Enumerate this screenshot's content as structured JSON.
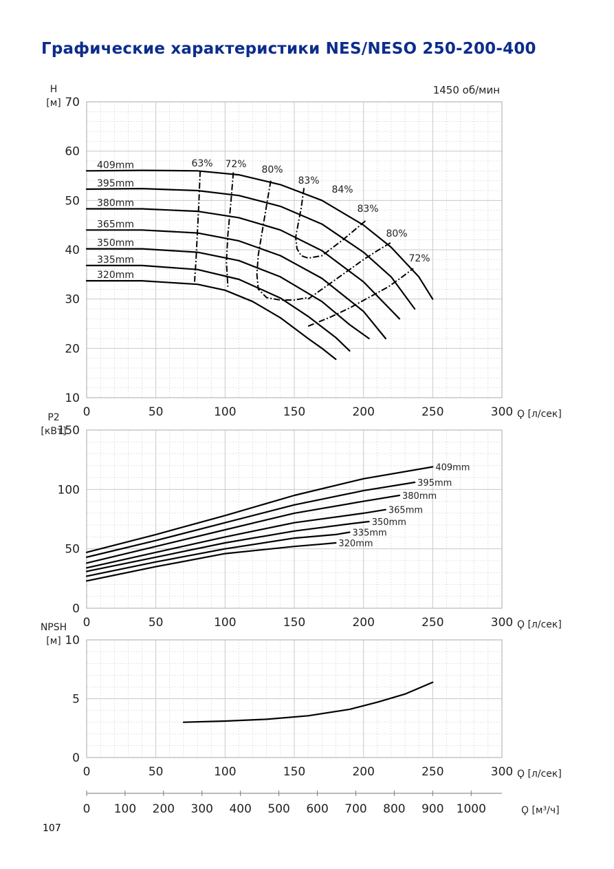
{
  "page": {
    "title": "Графические характеристики NES/NESO 250-200-400",
    "page_number": "107",
    "speed_label": "1450 об/мин",
    "colors": {
      "title": "#0d2d8c",
      "curves": "#000000",
      "grid": "#c8c8c8",
      "axis_text": "#222222"
    }
  },
  "chart_data": [
    {
      "type": "line",
      "id": "head",
      "title": "",
      "ylabel": "H\n[м]",
      "xlabel": "Q [л/сек]",
      "xlim": [
        0,
        300
      ],
      "ylim": [
        10,
        70
      ],
      "xticks": [
        "0",
        "50",
        "100",
        "150",
        "200",
        "250",
        "300"
      ],
      "yticks": [
        "10",
        "20",
        "30",
        "40",
        "50",
        "60",
        "70"
      ],
      "grid": true,
      "series": [
        {
          "name": "409mm",
          "x": [
            0,
            40,
            80,
            110,
            140,
            170,
            200,
            220,
            240,
            250
          ],
          "y": [
            56.0,
            56.1,
            56.0,
            55.2,
            53.2,
            50.0,
            45.0,
            40.5,
            34.5,
            30.0
          ]
        },
        {
          "name": "395mm",
          "x": [
            0,
            40,
            80,
            110,
            140,
            170,
            200,
            220,
            237
          ],
          "y": [
            52.3,
            52.4,
            52.0,
            51.0,
            48.8,
            45.2,
            39.5,
            34.5,
            28.0
          ]
        },
        {
          "name": "380mm",
          "x": [
            0,
            40,
            80,
            110,
            140,
            170,
            200,
            226
          ],
          "y": [
            48.3,
            48.3,
            47.8,
            46.5,
            44.0,
            39.8,
            33.5,
            26.0
          ]
        },
        {
          "name": "365mm",
          "x": [
            0,
            40,
            80,
            110,
            140,
            170,
            200,
            216
          ],
          "y": [
            44.0,
            44.0,
            43.4,
            41.8,
            38.8,
            34.2,
            27.5,
            22.0
          ]
        },
        {
          "name": "350mm",
          "x": [
            0,
            40,
            80,
            110,
            140,
            170,
            190,
            204
          ],
          "y": [
            40.2,
            40.2,
            39.5,
            37.8,
            34.5,
            29.5,
            24.8,
            22.0
          ]
        },
        {
          "name": "335mm",
          "x": [
            0,
            40,
            80,
            110,
            140,
            160,
            180,
            190
          ],
          "y": [
            36.8,
            36.8,
            36.0,
            34.0,
            30.2,
            26.5,
            22.2,
            19.5
          ]
        },
        {
          "name": "320mm",
          "x": [
            0,
            40,
            80,
            100,
            120,
            140,
            160,
            170,
            180
          ],
          "y": [
            33.7,
            33.7,
            33.0,
            31.8,
            29.5,
            26.2,
            22.0,
            20.0,
            17.8
          ]
        }
      ],
      "efficiency_contours": [
        {
          "label": "63%",
          "x": [
            82,
            81,
            80,
            79,
            78
          ],
          "y": [
            56.0,
            49.0,
            43.5,
            38.0,
            33.5
          ]
        },
        {
          "label": "72%",
          "x": [
            106,
            104,
            102,
            101,
            102
          ],
          "y": [
            55.7,
            49.0,
            43.0,
            37.5,
            32.5
          ]
        },
        {
          "label": "80%",
          "x": [
            133,
            130,
            127,
            124,
            123,
            124,
            130,
            140,
            150,
            160
          ],
          "y": [
            54.0,
            49.0,
            44.0,
            39.0,
            35.0,
            32.0,
            30.3,
            29.8,
            29.8,
            30.3
          ]
        },
        {
          "label": "83%",
          "x": [
            157,
            155,
            153,
            151,
            152,
            155,
            160,
            170,
            185,
            202
          ],
          "y": [
            52.5,
            48.5,
            45.5,
            42.5,
            40.2,
            38.8,
            38.3,
            38.8,
            42.0,
            46.0
          ]
        },
        {
          "label": "84%",
          "x": [],
          "y": []
        },
        {
          "label": "83%",
          "x": [
            160,
            175,
            190,
            200,
            210,
            220
          ],
          "y": [
            30.0,
            33.0,
            36.0,
            38.0,
            39.8,
            41.5
          ]
        },
        {
          "label": "80%",
          "x": [
            160,
            175,
            190,
            205,
            218,
            228,
            236
          ],
          "y": [
            24.5,
            26.2,
            28.2,
            30.5,
            32.5,
            34.5,
            36.2
          ]
        },
        {
          "label": "72%",
          "x": [],
          "y": []
        }
      ]
    },
    {
      "type": "line",
      "id": "power",
      "title": "",
      "ylabel": "P2\n[кВт]",
      "xlabel": "Q [л/сек]",
      "xlim": [
        0,
        300
      ],
      "ylim": [
        0,
        150
      ],
      "xticks": [
        "0",
        "50",
        "100",
        "150",
        "200",
        "250",
        "300"
      ],
      "yticks": [
        "0",
        "50",
        "100",
        "150"
      ],
      "grid": true,
      "series": [
        {
          "name": "409mm",
          "x": [
            0,
            50,
            100,
            150,
            200,
            250
          ],
          "y": [
            47,
            62,
            78,
            95,
            109,
            119
          ]
        },
        {
          "name": "395mm",
          "x": [
            0,
            50,
            100,
            150,
            200,
            237
          ],
          "y": [
            43,
            57,
            72,
            87,
            99,
            106
          ]
        },
        {
          "name": "380mm",
          "x": [
            0,
            50,
            100,
            150,
            200,
            226
          ],
          "y": [
            38,
            52,
            66,
            80,
            90,
            95
          ]
        },
        {
          "name": "365mm",
          "x": [
            0,
            50,
            100,
            150,
            200,
            216
          ],
          "y": [
            34,
            47,
            60,
            72,
            80,
            83
          ]
        },
        {
          "name": "350mm",
          "x": [
            0,
            50,
            100,
            150,
            190,
            204
          ],
          "y": [
            31,
            43,
            55,
            65,
            71,
            73
          ]
        },
        {
          "name": "335mm",
          "x": [
            0,
            50,
            100,
            150,
            180,
            190
          ],
          "y": [
            27,
            39,
            50,
            59,
            62,
            64
          ]
        },
        {
          "name": "320mm",
          "x": [
            0,
            50,
            100,
            150,
            170,
            180
          ],
          "y": [
            23,
            35,
            46,
            52,
            54,
            55
          ]
        }
      ]
    },
    {
      "type": "line",
      "id": "npsh",
      "title": "",
      "ylabel": "NPSH\n[м]",
      "xlabel": "Q [л/сек]",
      "xlabel2": "Q [м³/ч]",
      "xlim": [
        0,
        300
      ],
      "ylim": [
        0,
        10
      ],
      "xticks": [
        "0",
        "50",
        "100",
        "150",
        "200",
        "250",
        "300"
      ],
      "xticks2": [
        "0",
        "100",
        "200",
        "300",
        "400",
        "500",
        "600",
        "700",
        "800",
        "900",
        "1000"
      ],
      "yticks": [
        "0",
        "5",
        "10"
      ],
      "grid": true,
      "series": [
        {
          "name": "",
          "x": [
            70,
            100,
            130,
            160,
            190,
            210,
            230,
            250
          ],
          "y": [
            3.0,
            3.1,
            3.25,
            3.55,
            4.1,
            4.7,
            5.4,
            6.4
          ]
        }
      ]
    }
  ]
}
